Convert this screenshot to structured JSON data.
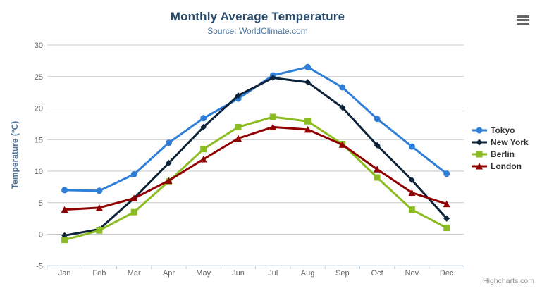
{
  "colors": {
    "title": "#274b6d",
    "subtitle": "#4d759e",
    "axis_title": "#4d759e",
    "tick_label": "#666666",
    "grid": "#c8c8c8",
    "axis_line": "#c0d0e0",
    "legend_text": "#333333",
    "credit": "#8f8f8f",
    "menu_icon": "#666666"
  },
  "menu": {
    "icon": "hamburger-icon"
  },
  "credit": "Highcharts.com",
  "chart_data": {
    "type": "line",
    "title": "Monthly Average Temperature",
    "subtitle": "Source: WorldClimate.com",
    "categories": [
      "Jan",
      "Feb",
      "Mar",
      "Apr",
      "May",
      "Jun",
      "Jul",
      "Aug",
      "Sep",
      "Oct",
      "Nov",
      "Dec"
    ],
    "series": [
      {
        "name": "Tokyo",
        "color": "#2f7ed8",
        "marker": "circle",
        "values": [
          7.0,
          6.9,
          9.5,
          14.5,
          18.4,
          21.5,
          25.2,
          26.5,
          23.3,
          18.3,
          13.9,
          9.6
        ]
      },
      {
        "name": "New York",
        "color": "#0d233a",
        "marker": "diamond",
        "values": [
          -0.2,
          0.8,
          5.7,
          11.3,
          17.0,
          22.0,
          24.8,
          24.1,
          20.1,
          14.1,
          8.6,
          2.5
        ]
      },
      {
        "name": "Berlin",
        "color": "#8bbc21",
        "marker": "square",
        "values": [
          -0.9,
          0.6,
          3.5,
          8.4,
          13.5,
          17.0,
          18.6,
          17.9,
          14.3,
          9.0,
          3.9,
          1.0
        ]
      },
      {
        "name": "London",
        "color": "#910000",
        "marker": "triangle",
        "values": [
          3.9,
          4.2,
          5.7,
          8.5,
          11.9,
          15.2,
          17.0,
          16.6,
          14.2,
          10.3,
          6.6,
          4.8
        ]
      }
    ],
    "xlabel": "",
    "ylabel": "Temperature (°C)",
    "ylim": [
      -5,
      30
    ],
    "yticks": [
      -5,
      0,
      5,
      10,
      15,
      20,
      25,
      30
    ],
    "grid": true,
    "legend_position": "right"
  }
}
